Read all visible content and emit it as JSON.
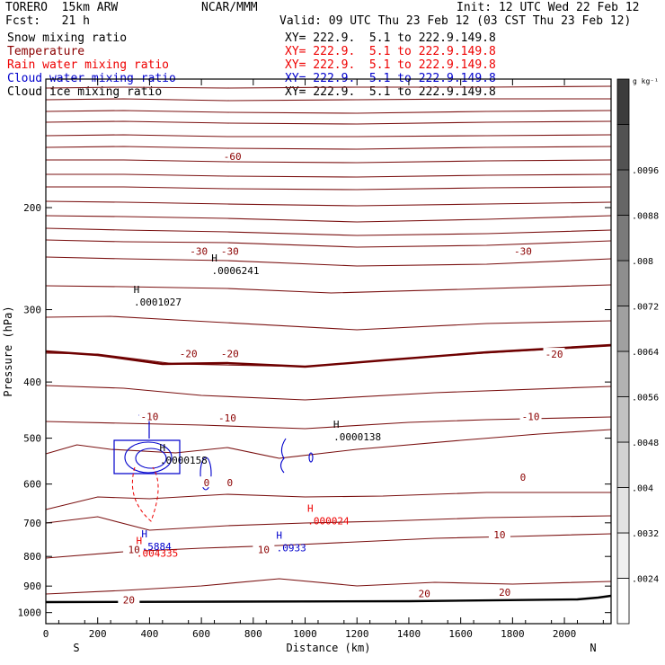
{
  "header": {
    "model": "TORERO  15km ARW",
    "center": "NCAR/MMM",
    "init": "Init: 12 UTC Wed 22 Feb 12",
    "fcst": "Fcst:   21 h",
    "valid": "Valid: 09 UTC Thu 23 Feb 12 (03 CST Thu 23 Feb 12)"
  },
  "fields": [
    {
      "name": "Snow mixing ratio",
      "xs": "",
      "color": "#000000"
    },
    {
      "name": "Temperature",
      "xs": "XY= 222.9.  5.1 to 222.9.149.8",
      "color": "#8b0000"
    },
    {
      "name": "Rain water mixing ratio",
      "xs": "XY= 222.9.  5.1 to 222.9.149.8",
      "color": "#ee0000"
    },
    {
      "name": "Cloud water mixing ratio",
      "xs": "XY= 222.9.  5.1 to 222.9.149.8",
      "color": "#0000cc"
    },
    {
      "name": "Cloud ice mixing ratio",
      "xs": "XY= 222.9.  5.1 to 222.9.149.8",
      "color": "#000000"
    }
  ],
  "snow_xs": "XY= 222.9.  5.1 to 222.9.149.8",
  "chart_data": {
    "type": "cross-section contour",
    "xlabel": "Distance (km)",
    "ylabel": "Pressure (hPa)",
    "x_ticks": [
      0,
      200,
      400,
      600,
      800,
      1000,
      1200,
      1400,
      1600,
      1800,
      2000
    ],
    "y_ticks": [
      200,
      300,
      400,
      500,
      600,
      700,
      800,
      900,
      1000
    ],
    "xlim": [
      0,
      2180
    ],
    "ylim": [
      1045,
      120
    ],
    "y_scale": "log",
    "left_label": "S",
    "right_label": "N",
    "colorbar": {
      "unit": "g kg⁻¹",
      "ticks": [
        ".0024",
        ".0032",
        ".004",
        ".0048",
        ".0056",
        ".0064",
        ".0072",
        ".008",
        ".0088",
        ".0096"
      ],
      "colors": [
        "#ffffff",
        "#f0f0f0",
        "#e2e2e2",
        "#d2d2d2",
        "#c2c2c2",
        "#b2b2b2",
        "#a0a0a0",
        "#8e8e8e",
        "#7a7a7a",
        "#666666",
        "#525252",
        "#3c3c3c"
      ]
    },
    "temperature_labels": [
      {
        "text": "-60",
        "x": 720,
        "p": 163
      },
      {
        "text": "-30",
        "x": 590,
        "p": 238
      },
      {
        "text": "-30",
        "x": 710,
        "p": 238
      },
      {
        "text": "-30",
        "x": 1840,
        "p": 238
      },
      {
        "text": "-20",
        "x": 550,
        "p": 357
      },
      {
        "text": "-20",
        "x": 710,
        "p": 357
      },
      {
        "text": "-20",
        "x": 1960,
        "p": 358
      },
      {
        "text": "-10",
        "x": 400,
        "p": 459
      },
      {
        "text": "-10",
        "x": 700,
        "p": 461
      },
      {
        "text": "-10",
        "x": 1870,
        "p": 459
      },
      {
        "text": "0",
        "x": 620,
        "p": 597
      },
      {
        "text": "0",
        "x": 710,
        "p": 597
      },
      {
        "text": "0",
        "x": 1840,
        "p": 584
      },
      {
        "text": "10",
        "x": 1750,
        "p": 734
      },
      {
        "text": "10",
        "x": 340,
        "p": 778
      },
      {
        "text": "10",
        "x": 840,
        "p": 778
      },
      {
        "text": "20",
        "x": 1460,
        "p": 927
      },
      {
        "text": "20",
        "x": 1770,
        "p": 922
      },
      {
        "text": "20",
        "x": 320,
        "p": 951
      }
    ],
    "snow_maxima": [
      {
        "value": ".0006241",
        "x": 650,
        "p": 257
      },
      {
        "value": ".0001027",
        "x": 350,
        "p": 291
      },
      {
        "value": ".0000138",
        "x": 1120,
        "p": 497
      },
      {
        "value": ".0000158",
        "x": 450,
        "p": 546
      }
    ],
    "rain_maxima": [
      {
        "value": ".000024",
        "x": 1020,
        "p": 694
      },
      {
        "value": ".004335",
        "x": 360,
        "p": 789
      }
    ],
    "cloud_water_maxima": [
      {
        "value": ".5884",
        "x": 380,
        "p": 769
      },
      {
        "value": ".0933",
        "x": 900,
        "p": 773
      }
    ]
  }
}
